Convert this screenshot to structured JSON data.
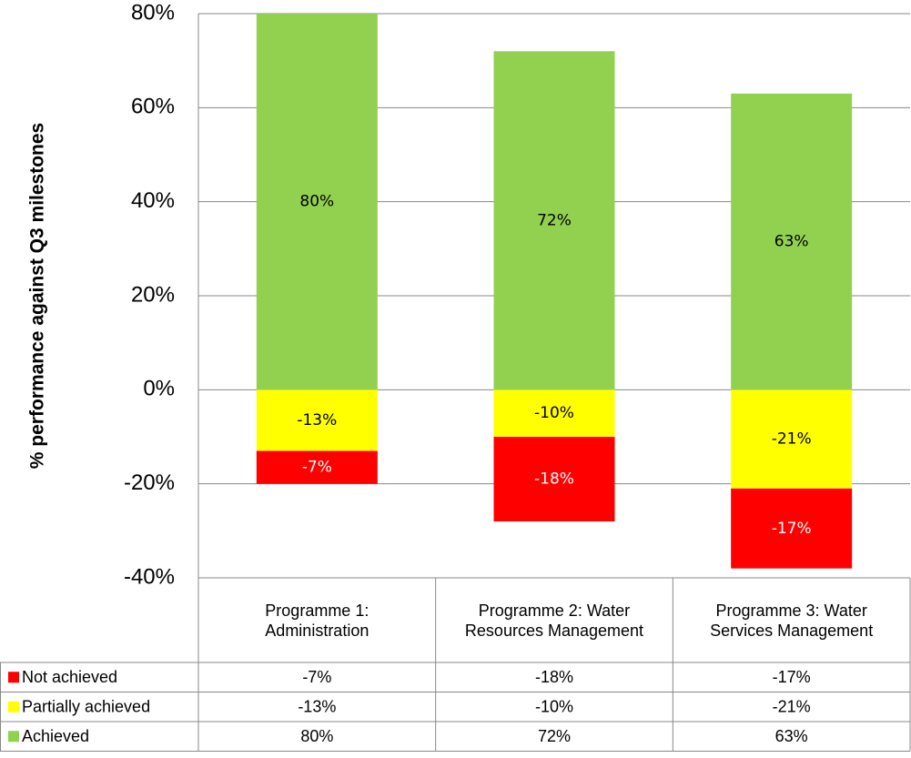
{
  "chart_data": {
    "type": "stacked_bar",
    "y_axis_label": "% performance against Q3 milestones",
    "categories": [
      "Programme 1: Administration",
      "Programme 2: Water Resources Management",
      "Programme 3: Water Services Management"
    ],
    "series": [
      {
        "name": "Achieved",
        "color": "#92d050",
        "values": [
          80,
          72,
          63
        ],
        "value_labels": [
          "80%",
          "72%",
          "63%"
        ]
      },
      {
        "name": "Partially achieved",
        "color": "#ffff00",
        "values": [
          -13,
          -10,
          -21
        ],
        "value_labels": [
          "-13%",
          "-10%",
          "-21%"
        ]
      },
      {
        "name": "Not achieved",
        "color": "#ff0000",
        "values": [
          -7,
          -18,
          -17
        ],
        "value_labels": [
          "-7%",
          "-18%",
          "-17%"
        ]
      }
    ],
    "ylim": [
      -40,
      80
    ],
    "yticks": [
      {
        "value": -40,
        "label": "-40%"
      },
      {
        "value": -20,
        "label": "-20%"
      },
      {
        "value": 0,
        "label": "0%"
      },
      {
        "value": 20,
        "label": "20%"
      },
      {
        "value": 40,
        "label": "40%"
      },
      {
        "value": 60,
        "label": "60%"
      },
      {
        "value": 80,
        "label": "80%"
      }
    ],
    "grid": true,
    "data_table": true
  }
}
